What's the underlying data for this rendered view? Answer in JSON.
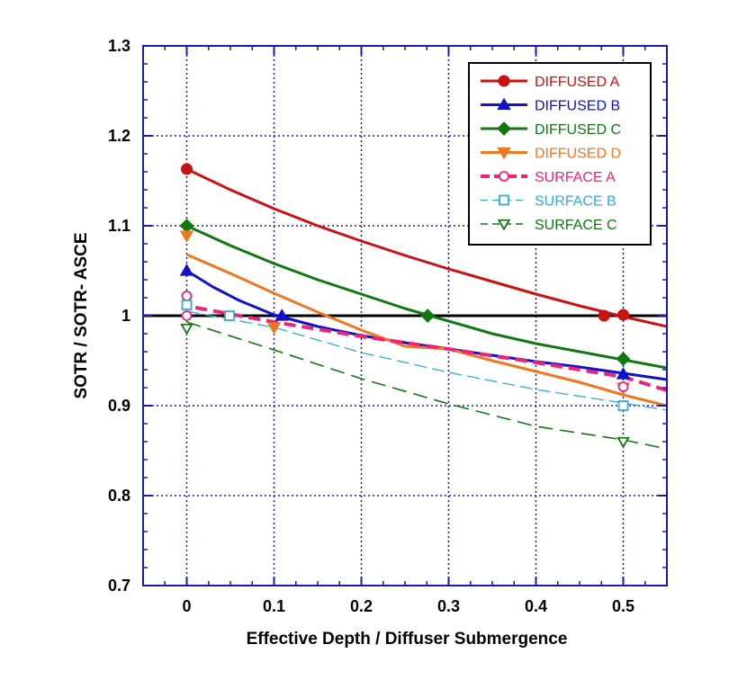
{
  "chart_data": {
    "type": "line",
    "title": "",
    "xlabel": "Effective Depth / Diffuser Submergence",
    "ylabel": "SOTR / SOTR- ASCE",
    "xlim": [
      -0.05,
      0.55
    ],
    "ylim": [
      0.7,
      1.3
    ],
    "x_ticks": [
      0,
      0.1,
      0.2,
      0.3,
      0.4,
      0.5
    ],
    "x_tick_labels": [
      "0",
      "0.1",
      "0.2",
      "0.3",
      "0.4",
      "0.5"
    ],
    "y_ticks": [
      0.7,
      0.8,
      0.9,
      1.0,
      1.1,
      1.2,
      1.3
    ],
    "y_tick_labels": [
      "0.7",
      "0.8",
      "0.9",
      "1",
      "1.1",
      "1.2",
      "1.3"
    ],
    "grid": true,
    "legend_position": "top-right",
    "reference_line": {
      "y": 1.0,
      "color": "#000000"
    },
    "series": [
      {
        "name": "DIFFUSED A",
        "color": "#cc1111",
        "marker": "circle-filled",
        "line": "solid",
        "curve": [
          [
            0,
            1.163
          ],
          [
            0.05,
            1.14
          ],
          [
            0.1,
            1.119
          ],
          [
            0.15,
            1.1
          ],
          [
            0.2,
            1.083
          ],
          [
            0.25,
            1.067
          ],
          [
            0.3,
            1.052
          ],
          [
            0.35,
            1.038
          ],
          [
            0.4,
            1.024
          ],
          [
            0.45,
            1.011
          ],
          [
            0.5,
            0.999
          ],
          [
            0.55,
            0.988
          ]
        ],
        "points": [
          [
            0,
            1.163
          ],
          [
            0.478,
            1.0
          ],
          [
            0.5,
            1.001
          ]
        ]
      },
      {
        "name": "DIFFUSED B",
        "color": "#1111cc",
        "marker": "triangle-up-filled",
        "line": "solid",
        "curve": [
          [
            0,
            1.05
          ],
          [
            0.03,
            1.032
          ],
          [
            0.06,
            1.017
          ],
          [
            0.1,
            1.001
          ],
          [
            0.15,
            0.988
          ],
          [
            0.2,
            0.978
          ],
          [
            0.25,
            0.97
          ],
          [
            0.3,
            0.963
          ],
          [
            0.35,
            0.956
          ],
          [
            0.4,
            0.949
          ],
          [
            0.45,
            0.943
          ],
          [
            0.5,
            0.936
          ],
          [
            0.55,
            0.929
          ]
        ],
        "points": [
          [
            0,
            1.05
          ],
          [
            0.109,
            1.0
          ],
          [
            0.5,
            0.935
          ]
        ]
      },
      {
        "name": "DIFFUSED C",
        "color": "#117711",
        "marker": "diamond-filled",
        "line": "solid",
        "curve": [
          [
            0,
            1.1
          ],
          [
            0.05,
            1.078
          ],
          [
            0.1,
            1.058
          ],
          [
            0.15,
            1.04
          ],
          [
            0.2,
            1.024
          ],
          [
            0.25,
            1.008
          ],
          [
            0.3,
            0.994
          ],
          [
            0.35,
            0.98
          ],
          [
            0.4,
            0.969
          ],
          [
            0.45,
            0.96
          ],
          [
            0.5,
            0.951
          ],
          [
            0.55,
            0.942
          ]
        ],
        "points": [
          [
            0,
            1.1
          ],
          [
            0.276,
            1.0
          ],
          [
            0.5,
            0.952
          ]
        ]
      },
      {
        "name": "DIFFUSED D",
        "color": "#ee7722",
        "marker": "triangle-down-filled",
        "line": "solid",
        "curve": [
          [
            0,
            1.068
          ],
          [
            0.05,
            1.047
          ],
          [
            0.1,
            1.025
          ],
          [
            0.15,
            1.004
          ],
          [
            0.2,
            0.984
          ],
          [
            0.25,
            0.966
          ],
          [
            0.3,
            0.963
          ],
          [
            0.35,
            0.95
          ],
          [
            0.4,
            0.938
          ],
          [
            0.45,
            0.926
          ],
          [
            0.5,
            0.912
          ],
          [
            0.55,
            0.9
          ]
        ],
        "points": [
          [
            0,
            1.089
          ],
          [
            0.1,
            0.987
          ],
          [
            0.5,
            0.92
          ]
        ]
      },
      {
        "name": "SURFACE A",
        "color": "#ee2277",
        "marker": "circle-open",
        "line": "dashed-bold",
        "curve": [
          [
            0.01,
            1.009
          ],
          [
            0.1,
            0.993
          ],
          [
            0.2,
            0.977
          ],
          [
            0.3,
            0.963
          ],
          [
            0.4,
            0.948
          ],
          [
            0.5,
            0.932
          ],
          [
            0.55,
            0.917
          ]
        ],
        "points": [
          [
            0,
            1.022
          ],
          [
            0,
            1.0
          ],
          [
            0.5,
            0.921
          ]
        ]
      },
      {
        "name": "SURFACE B",
        "color": "#33aadd",
        "marker": "square-open",
        "line": "dashed-thin",
        "curve": [
          [
            0,
            1.005
          ],
          [
            0.1,
            0.987
          ],
          [
            0.2,
            0.959
          ],
          [
            0.3,
            0.937
          ],
          [
            0.4,
            0.918
          ],
          [
            0.5,
            0.903
          ],
          [
            0.55,
            0.895
          ]
        ],
        "points": [
          [
            0,
            1.012
          ],
          [
            0.049,
            1.0
          ],
          [
            0.5,
            0.9
          ]
        ]
      },
      {
        "name": "SURFACE C",
        "color": "#117711",
        "marker": "triangle-down-open",
        "line": "dashed-long",
        "curve": [
          [
            0,
            0.993
          ],
          [
            0.1,
            0.962
          ],
          [
            0.2,
            0.93
          ],
          [
            0.3,
            0.902
          ],
          [
            0.4,
            0.877
          ],
          [
            0.5,
            0.862
          ],
          [
            0.55,
            0.852
          ]
        ],
        "points": [
          [
            0,
            0.986
          ],
          [
            0.5,
            0.86
          ]
        ]
      }
    ]
  }
}
